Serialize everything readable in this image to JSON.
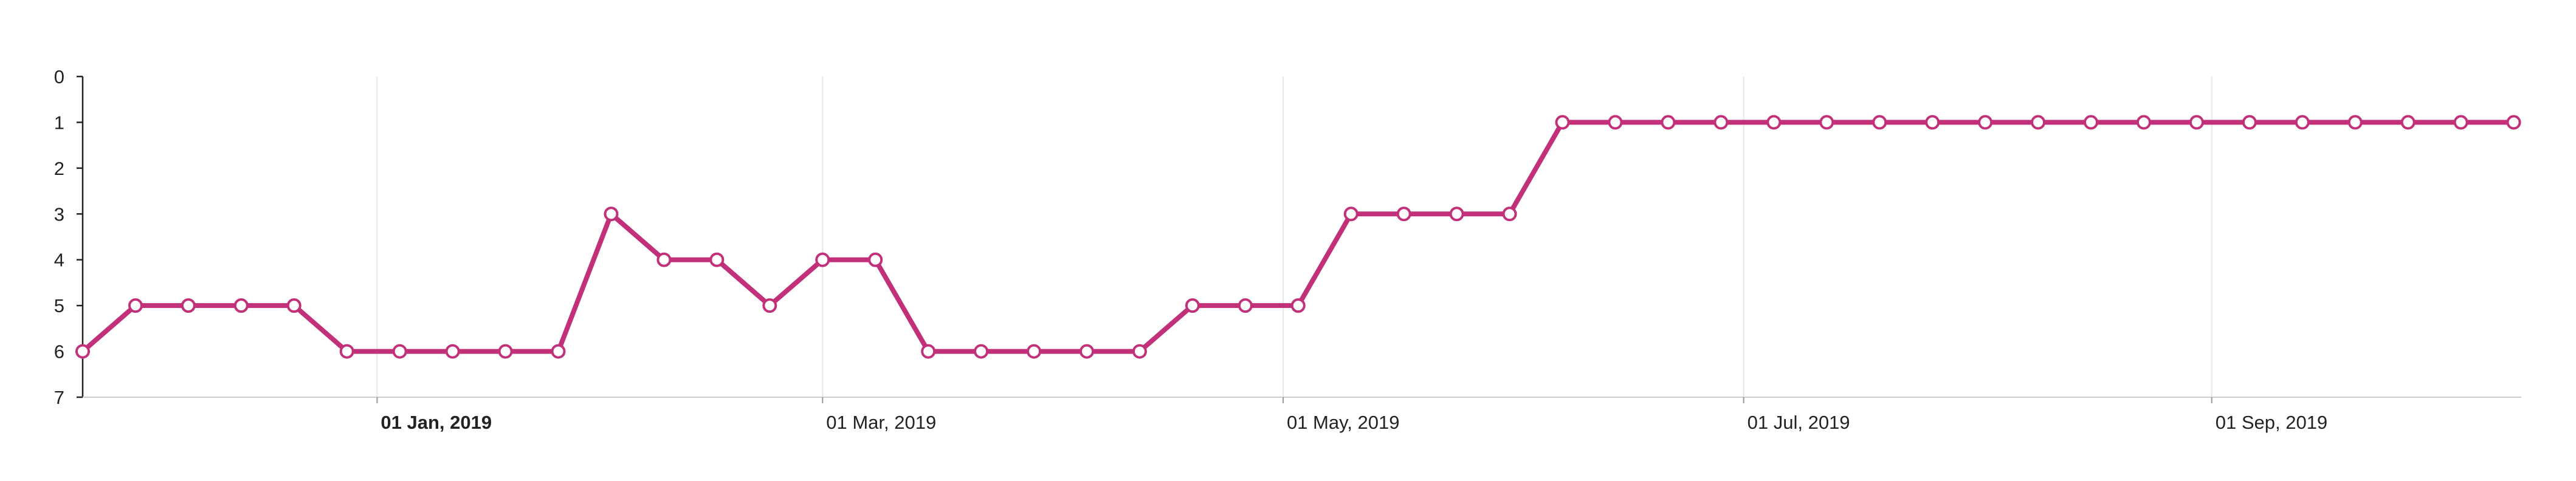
{
  "chart_data": {
    "type": "line",
    "title": "",
    "xlabel": "",
    "ylabel": "",
    "y_axis": {
      "inverted": true,
      "ylim": [
        0,
        7
      ],
      "ticks": [
        "0",
        "1",
        "2",
        "3",
        "4",
        "5",
        "6",
        "7"
      ]
    },
    "x_axis": {
      "range": [
        "2018-11-23",
        "2019-10-12"
      ],
      "ticks": [
        {
          "date": "2019-01-01",
          "label": "01 Jan, 2019",
          "bold": true
        },
        {
          "date": "2019-03-01",
          "label": "01 Mar, 2019",
          "bold": false
        },
        {
          "date": "2019-05-01",
          "label": "01 May, 2019",
          "bold": false
        },
        {
          "date": "2019-07-01",
          "label": "01 Jul, 2019",
          "bold": false
        },
        {
          "date": "2019-09-01",
          "label": "01 Sep, 2019",
          "bold": false
        }
      ]
    },
    "grid": {
      "vertical": true,
      "horizontal": false
    },
    "colors": {
      "line": "#c2307a",
      "marker_fill": "#ffffff",
      "grid": "#e6e6e6",
      "axis": "#999999"
    },
    "series": [
      {
        "x": [
          "2018-11-23",
          "2018-11-30",
          "2018-12-07",
          "2018-12-14",
          "2018-12-21",
          "2018-12-28",
          "2019-01-04",
          "2019-01-11",
          "2019-01-18",
          "2019-01-25",
          "2019-02-01",
          "2019-02-08",
          "2019-02-15",
          "2019-02-22",
          "2019-03-01",
          "2019-03-08",
          "2019-03-15",
          "2019-03-22",
          "2019-03-29",
          "2019-04-05",
          "2019-04-12",
          "2019-04-19",
          "2019-04-26",
          "2019-05-03",
          "2019-05-10",
          "2019-05-17",
          "2019-05-24",
          "2019-05-31",
          "2019-06-07",
          "2019-06-14",
          "2019-06-21",
          "2019-06-28",
          "2019-07-05",
          "2019-07-12",
          "2019-07-19",
          "2019-07-26",
          "2019-08-02",
          "2019-08-09",
          "2019-08-16",
          "2019-08-23",
          "2019-08-30",
          "2019-09-06",
          "2019-09-13",
          "2019-09-20",
          "2019-09-27",
          "2019-10-04",
          "2019-10-11"
        ],
        "values": [
          6,
          5,
          5,
          5,
          5,
          6,
          6,
          6,
          6,
          6,
          3,
          4,
          4,
          5,
          4,
          4,
          6,
          6,
          6,
          6,
          6,
          5,
          5,
          5,
          3,
          3,
          3,
          3,
          1,
          1,
          1,
          1,
          1,
          1,
          1,
          1,
          1,
          1,
          1,
          1,
          1,
          1,
          1,
          1,
          1,
          1,
          1
        ]
      }
    ]
  }
}
